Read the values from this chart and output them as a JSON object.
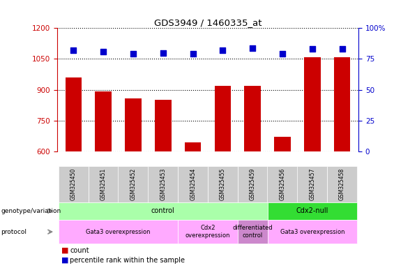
{
  "title": "GDS3949 / 1460335_at",
  "samples": [
    "GSM325450",
    "GSM325451",
    "GSM325452",
    "GSM325453",
    "GSM325454",
    "GSM325455",
    "GSM325459",
    "GSM325456",
    "GSM325457",
    "GSM325458"
  ],
  "counts": [
    960,
    893,
    858,
    850,
    645,
    918,
    920,
    670,
    1060,
    1060
  ],
  "percentiles": [
    82,
    81,
    79,
    80,
    79,
    82,
    84,
    79,
    83,
    83
  ],
  "ylim_left": [
    600,
    1200
  ],
  "ylim_right": [
    0,
    100
  ],
  "yticks_left": [
    600,
    750,
    900,
    1050,
    1200
  ],
  "yticks_right": [
    0,
    25,
    50,
    75,
    100
  ],
  "bar_color": "#cc0000",
  "dot_color": "#0000cc",
  "bar_width": 0.55,
  "dot_size": 40,
  "genotype_groups": [
    {
      "label": "control",
      "start": 0,
      "end": 7,
      "color": "#aaffaa"
    },
    {
      "label": "Cdx2-null",
      "start": 7,
      "end": 10,
      "color": "#33dd33"
    }
  ],
  "protocol_groups": [
    {
      "label": "Gata3 overexpression",
      "start": 0,
      "end": 4,
      "color": "#ffaaff"
    },
    {
      "label": "Cdx2\noverexpression",
      "start": 4,
      "end": 6,
      "color": "#ffaaff"
    },
    {
      "label": "differentiated\ncontrol",
      "start": 6,
      "end": 7,
      "color": "#cc88cc"
    },
    {
      "label": "Gata3 overexpression",
      "start": 7,
      "end": 10,
      "color": "#ffaaff"
    }
  ],
  "legend_count_color": "#cc0000",
  "legend_dot_color": "#0000cc",
  "bg_color": "#ffffff",
  "tick_color_left": "#cc0000",
  "tick_color_right": "#0000cc",
  "xticklabel_bg": "#cccccc"
}
